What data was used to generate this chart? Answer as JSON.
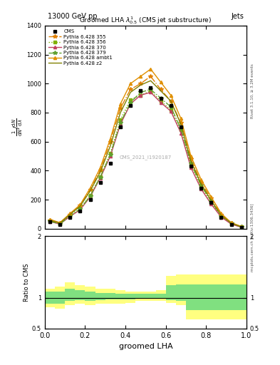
{
  "title": "13000 GeV pp",
  "title_right": "Jets",
  "plot_title": "Groomed LHA $\\lambda^{1}_{0.5}$ (CMS jet substructure)",
  "xlabel": "groomed LHA",
  "ylabel": "1 / mathrm{d}N / mathrm{d}mathrm{lambda}",
  "watermark": "CMS_2021_I1920187",
  "right_label": "mcplots.cern.ch [arXiv:1306.3436]",
  "right_label2": "Rivet 3.1.10, ≥ 3.2M events",
  "x_bins": [
    0.0,
    0.05,
    0.1,
    0.15,
    0.2,
    0.25,
    0.3,
    0.35,
    0.4,
    0.45,
    0.5,
    0.55,
    0.6,
    0.65,
    0.7,
    0.75,
    0.8,
    0.85,
    0.9,
    0.95,
    1.0
  ],
  "cms_data": [
    50,
    30,
    80,
    120,
    200,
    320,
    450,
    700,
    850,
    950,
    970,
    900,
    850,
    700,
    430,
    280,
    180,
    80,
    30,
    10
  ],
  "series": [
    {
      "label": "Pythia 6.428 355",
      "color": "#e08000",
      "linestyle": "-.",
      "marker": "*",
      "values": [
        60,
        40,
        100,
        160,
        270,
        400,
        600,
        830,
        960,
        1000,
        1050,
        960,
        880,
        730,
        480,
        320,
        210,
        100,
        40,
        15
      ]
    },
    {
      "label": "Pythia 6.428 356",
      "color": "#80b000",
      "linestyle": ":",
      "marker": "s",
      "values": [
        55,
        35,
        90,
        140,
        230,
        360,
        520,
        750,
        890,
        920,
        950,
        880,
        820,
        680,
        440,
        290,
        180,
        85,
        35,
        12
      ]
    },
    {
      "label": "Pythia 6.428 370",
      "color": "#c04060",
      "linestyle": "-",
      "marker": "^",
      "values": [
        50,
        32,
        85,
        130,
        220,
        350,
        500,
        720,
        860,
        920,
        940,
        870,
        810,
        660,
        420,
        275,
        170,
        80,
        32,
        10
      ]
    },
    {
      "label": "Pythia 6.428 379",
      "color": "#60a030",
      "linestyle": "-.",
      "marker": "*",
      "values": [
        52,
        33,
        87,
        135,
        225,
        355,
        510,
        730,
        870,
        940,
        960,
        900,
        840,
        690,
        450,
        300,
        190,
        90,
        38,
        12
      ]
    },
    {
      "label": "Pythia 6.428 ambt1",
      "color": "#e09000",
      "linestyle": "-",
      "marker": "^",
      "values": [
        65,
        42,
        105,
        165,
        280,
        420,
        620,
        860,
        1000,
        1050,
        1100,
        1010,
        920,
        760,
        500,
        340,
        220,
        105,
        42,
        16
      ]
    },
    {
      "label": "Pythia 6.428 z2",
      "color": "#808000",
      "linestyle": "-",
      "marker": null,
      "values": [
        58,
        38,
        98,
        155,
        260,
        390,
        570,
        800,
        940,
        990,
        1020,
        950,
        880,
        720,
        465,
        310,
        195,
        92,
        38,
        13
      ]
    }
  ],
  "ratio_yellow_lo": [
    0.85,
    0.82,
    0.88,
    0.9,
    0.88,
    0.9,
    0.9,
    0.9,
    0.92,
    0.95,
    0.95,
    0.95,
    0.92,
    0.88,
    0.65,
    0.65,
    0.65,
    0.65,
    0.65,
    0.65
  ],
  "ratio_yellow_hi": [
    1.15,
    1.18,
    1.25,
    1.2,
    1.18,
    1.15,
    1.15,
    1.12,
    1.1,
    1.1,
    1.1,
    1.12,
    1.35,
    1.38,
    1.38,
    1.38,
    1.38,
    1.38,
    1.38,
    1.38
  ],
  "ratio_green_lo": [
    0.9,
    0.9,
    0.95,
    0.96,
    0.95,
    0.96,
    0.97,
    0.97,
    0.97,
    0.98,
    0.98,
    0.98,
    0.96,
    0.95,
    0.8,
    0.8,
    0.8,
    0.8,
    0.8,
    0.8
  ],
  "ratio_green_hi": [
    1.1,
    1.1,
    1.15,
    1.12,
    1.1,
    1.08,
    1.08,
    1.07,
    1.06,
    1.06,
    1.06,
    1.07,
    1.2,
    1.22,
    1.22,
    1.22,
    1.22,
    1.22,
    1.22,
    1.22
  ],
  "ylim": [
    0,
    1400
  ],
  "ratio_ylim": [
    0.5,
    2.0
  ],
  "background_color": "#ffffff"
}
